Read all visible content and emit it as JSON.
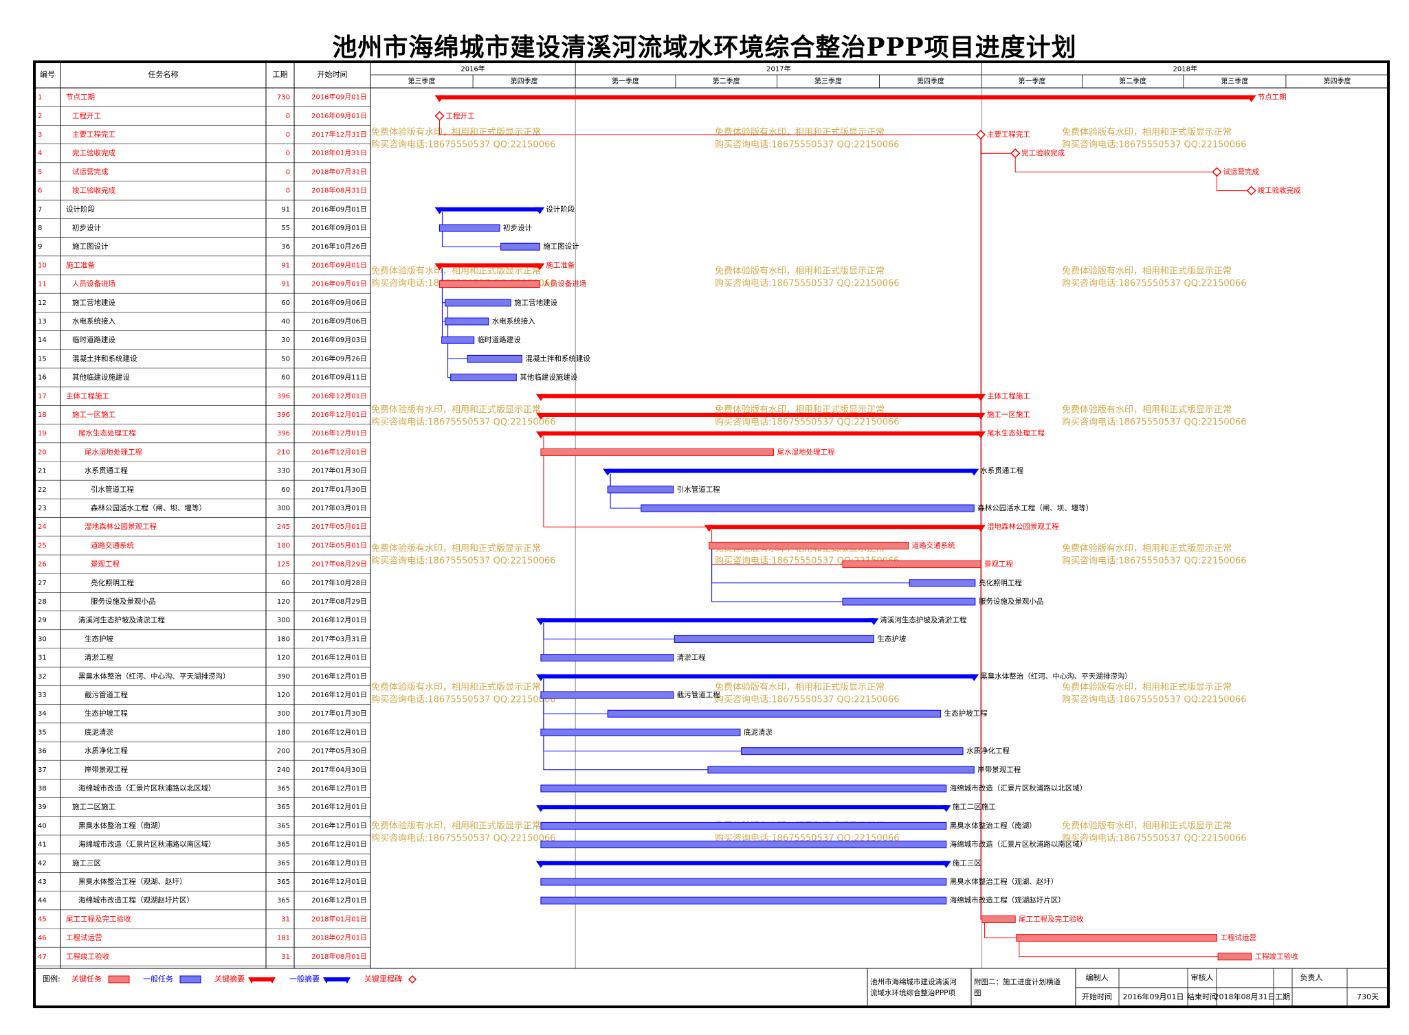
{
  "title": "池州市海绵城市建设清溪河流域水环境综合整治PPP项目进度计划",
  "table_headers": {
    "id": "编号",
    "name": "任务名称",
    "duration": "工期",
    "start": "开始时间"
  },
  "timeline": {
    "years": [
      {
        "label": "2016年",
        "start": "2016-07-01",
        "end": "2017-01-01"
      },
      {
        "label": "2017年",
        "start": "2017-01-01",
        "end": "2018-01-01"
      },
      {
        "label": "2018年",
        "start": "2018-01-01",
        "end": "2019-01-01"
      }
    ],
    "quarters": [
      {
        "label": "第三季度",
        "start": "2016-07-01",
        "end": "2016-10-01"
      },
      {
        "label": "第四季度",
        "start": "2016-10-01",
        "end": "2017-01-01"
      },
      {
        "label": "第一季度",
        "start": "2017-01-01",
        "end": "2017-04-01"
      },
      {
        "label": "第二季度",
        "start": "2017-04-01",
        "end": "2017-07-01"
      },
      {
        "label": "第三季度",
        "start": "2017-07-01",
        "end": "2017-10-01"
      },
      {
        "label": "第四季度",
        "start": "2017-10-01",
        "end": "2018-01-01"
      },
      {
        "label": "第一季度",
        "start": "2018-01-01",
        "end": "2018-04-01"
      },
      {
        "label": "第二季度",
        "start": "2018-04-01",
        "end": "2018-07-01"
      },
      {
        "label": "第三季度",
        "start": "2018-07-01",
        "end": "2018-10-01"
      },
      {
        "label": "第四季度",
        "start": "2018-10-01",
        "end": "2019-01-01"
      }
    ]
  },
  "watermark": {
    "line1": "免费体验版有水印，相用和正式版显示正常",
    "line2": "购买咨询电话:18675550537 QQ:22150066"
  },
  "colors": {
    "critical": "#ff0000",
    "normal": "#0000ff",
    "critical_fill": "#f08080",
    "normal_fill": "#7b7bf0",
    "watermark": "#d2a94a"
  },
  "chart_data": {
    "type": "gantt",
    "x_axis": "date",
    "tasks": [
      {
        "id": "1",
        "name": "节点工期",
        "duration": "730",
        "start": "2016年09月01日",
        "start_date": "2016-09-01",
        "end_date": "2018-08-31",
        "kind": "summary",
        "critical": true,
        "indent": 1,
        "bar_label": "节点工期"
      },
      {
        "id": "2",
        "name": "工程开工",
        "duration": "0",
        "start": "2016年09月01日",
        "start_date": "2016-09-01",
        "end_date": "2016-09-01",
        "kind": "milestone",
        "critical": true,
        "indent": 2,
        "bar_label": "工程开工"
      },
      {
        "id": "3",
        "name": "主要工程完工",
        "duration": "0",
        "start": "2017年12月31日",
        "start_date": "2017-12-31",
        "end_date": "2017-12-31",
        "kind": "milestone",
        "critical": true,
        "indent": 2,
        "bar_label": "主要工程完工"
      },
      {
        "id": "4",
        "name": "完工验收完成",
        "duration": "0",
        "start": "2018年01月31日",
        "start_date": "2018-01-31",
        "end_date": "2018-01-31",
        "kind": "milestone",
        "critical": true,
        "indent": 2,
        "bar_label": "完工验收完成"
      },
      {
        "id": "5",
        "name": "试运营完成",
        "duration": "0",
        "start": "2018年07月31日",
        "start_date": "2018-07-31",
        "end_date": "2018-07-31",
        "kind": "milestone",
        "critical": true,
        "indent": 2,
        "bar_label": "试运营完成"
      },
      {
        "id": "6",
        "name": "竣工验收完成",
        "duration": "0",
        "start": "2018年08月31日",
        "start_date": "2018-08-31",
        "end_date": "2018-08-31",
        "kind": "milestone",
        "critical": true,
        "indent": 2,
        "bar_label": "竣工验收完成"
      },
      {
        "id": "7",
        "name": "设计阶段",
        "duration": "91",
        "start": "2016年09月01日",
        "start_date": "2016-09-01",
        "end_date": "2016-11-30",
        "kind": "summary",
        "critical": false,
        "indent": 1,
        "bar_label": "设计阶段"
      },
      {
        "id": "8",
        "name": "初步设计",
        "duration": "55",
        "start": "2016年09月01日",
        "start_date": "2016-09-01",
        "end_date": "2016-10-25",
        "kind": "task",
        "critical": false,
        "indent": 2,
        "bar_label": "初步设计"
      },
      {
        "id": "9",
        "name": "施工图设计",
        "duration": "36",
        "start": "2016年10月26日",
        "start_date": "2016-10-26",
        "end_date": "2016-11-30",
        "kind": "task",
        "critical": false,
        "indent": 2,
        "bar_label": "施工图设计"
      },
      {
        "id": "10",
        "name": "施工准备",
        "duration": "91",
        "start": "2016年09月01日",
        "start_date": "2016-09-01",
        "end_date": "2016-11-30",
        "kind": "summary",
        "critical": true,
        "indent": 1,
        "bar_label": "施工准备"
      },
      {
        "id": "11",
        "name": "人员设备进场",
        "duration": "91",
        "start": "2016年09月01日",
        "start_date": "2016-09-01",
        "end_date": "2016-11-30",
        "kind": "task",
        "critical": true,
        "indent": 2,
        "bar_label": "人员设备进场"
      },
      {
        "id": "12",
        "name": "施工营地建设",
        "duration": "60",
        "start": "2016年09月06日",
        "start_date": "2016-09-06",
        "end_date": "2016-11-04",
        "kind": "task",
        "critical": false,
        "indent": 2,
        "bar_label": "施工营地建设"
      },
      {
        "id": "13",
        "name": "水电系统接入",
        "duration": "40",
        "start": "2016年09月06日",
        "start_date": "2016-09-06",
        "end_date": "2016-10-15",
        "kind": "task",
        "critical": false,
        "indent": 2,
        "bar_label": "水电系统接入"
      },
      {
        "id": "14",
        "name": "临时道路建设",
        "duration": "30",
        "start": "2016年09月03日",
        "start_date": "2016-09-03",
        "end_date": "2016-10-02",
        "kind": "task",
        "critical": false,
        "indent": 2,
        "bar_label": "临时道路建设"
      },
      {
        "id": "15",
        "name": "混凝土拌和系统建设",
        "duration": "50",
        "start": "2016年09月26日",
        "start_date": "2016-09-26",
        "end_date": "2016-11-14",
        "kind": "task",
        "critical": false,
        "indent": 2,
        "bar_label": "混凝土拌和系统建设"
      },
      {
        "id": "16",
        "name": "其他临建设施建设",
        "duration": "60",
        "start": "2016年09月11日",
        "start_date": "2016-09-11",
        "end_date": "2016-11-09",
        "kind": "task",
        "critical": false,
        "indent": 2,
        "bar_label": "其他临建设施建设"
      },
      {
        "id": "17",
        "name": "主体工程施工",
        "duration": "396",
        "start": "2016年12月01日",
        "start_date": "2016-12-01",
        "end_date": "2017-12-31",
        "kind": "summary",
        "critical": true,
        "indent": 1,
        "bar_label": "主体工程施工"
      },
      {
        "id": "18",
        "name": "施工一区施工",
        "duration": "396",
        "start": "2016年12月01日",
        "start_date": "2016-12-01",
        "end_date": "2017-12-31",
        "kind": "summary",
        "critical": true,
        "indent": 2,
        "bar_label": "施工一区施工"
      },
      {
        "id": "19",
        "name": "尾水生态处理工程",
        "duration": "396",
        "start": "2016年12月01日",
        "start_date": "2016-12-01",
        "end_date": "2017-12-31",
        "kind": "summary",
        "critical": true,
        "indent": 3,
        "bar_label": "尾水生态处理工程"
      },
      {
        "id": "20",
        "name": "尾水湿地处理工程",
        "duration": "210",
        "start": "2016年12月01日",
        "start_date": "2016-12-01",
        "end_date": "2017-06-28",
        "kind": "task",
        "critical": true,
        "indent": 4,
        "bar_label": "尾水湿地处理工程"
      },
      {
        "id": "21",
        "name": "水系贯通工程",
        "duration": "330",
        "start": "2017年01月30日",
        "start_date": "2017-01-30",
        "end_date": "2017-12-25",
        "kind": "summary",
        "critical": false,
        "indent": 4,
        "bar_label": "水系贯通工程"
      },
      {
        "id": "22",
        "name": "引水管道工程",
        "duration": "60",
        "start": "2017年01月30日",
        "start_date": "2017-01-30",
        "end_date": "2017-03-30",
        "kind": "task",
        "critical": false,
        "indent": 5,
        "bar_label": "引水管道工程"
      },
      {
        "id": "23",
        "name": "森林公园活水工程（闸、坝、堰等）",
        "duration": "300",
        "start": "2017年03月01日",
        "start_date": "2017-03-01",
        "end_date": "2017-12-25",
        "kind": "task",
        "critical": false,
        "indent": 5,
        "bar_label": "森林公园活水工程（闸、坝、堰等）"
      },
      {
        "id": "24",
        "name": "湿地森林公园景观工程",
        "duration": "245",
        "start": "2017年05月01日",
        "start_date": "2017-05-01",
        "end_date": "2017-12-31",
        "kind": "summary",
        "critical": true,
        "indent": 4,
        "bar_label": "湿地森林公园景观工程"
      },
      {
        "id": "25",
        "name": "道路交通系统",
        "duration": "180",
        "start": "2017年05月01日",
        "start_date": "2017-05-01",
        "end_date": "2017-10-27",
        "kind": "task",
        "critical": true,
        "indent": 5,
        "bar_label": "道路交通系统"
      },
      {
        "id": "26",
        "name": "景观工程",
        "duration": "125",
        "start": "2017年08月29日",
        "start_date": "2017-08-29",
        "end_date": "2017-12-31",
        "kind": "task",
        "critical": true,
        "indent": 5,
        "bar_label": "景观工程"
      },
      {
        "id": "27",
        "name": "亮化照明工程",
        "duration": "60",
        "start": "2017年10月28日",
        "start_date": "2017-10-28",
        "end_date": "2017-12-26",
        "kind": "task",
        "critical": false,
        "indent": 5,
        "bar_label": "亮化照明工程"
      },
      {
        "id": "28",
        "name": "服务设施及景观小品",
        "duration": "120",
        "start": "2017年08月29日",
        "start_date": "2017-08-29",
        "end_date": "2017-12-26",
        "kind": "task",
        "critical": false,
        "indent": 5,
        "bar_label": "服务设施及景观小品"
      },
      {
        "id": "29",
        "name": "清溪河生态护坡及清淤工程",
        "duration": "300",
        "start": "2016年12月01日",
        "start_date": "2016-12-01",
        "end_date": "2017-09-26",
        "kind": "summary",
        "critical": false,
        "indent": 3,
        "bar_label": "清溪河生态护坡及清淤工程"
      },
      {
        "id": "30",
        "name": "生态护坡",
        "duration": "180",
        "start": "2017年03月31日",
        "start_date": "2017-03-31",
        "end_date": "2017-09-26",
        "kind": "task",
        "critical": false,
        "indent": 4,
        "bar_label": "生态护坡"
      },
      {
        "id": "31",
        "name": "清淤工程",
        "duration": "120",
        "start": "2016年12月01日",
        "start_date": "2016-12-01",
        "end_date": "2017-03-30",
        "kind": "task",
        "critical": false,
        "indent": 4,
        "bar_label": "清淤工程"
      },
      {
        "id": "32",
        "name": "黑臭水体整治（红河、中心沟、平天湖排涝沟）",
        "duration": "390",
        "start": "2016年12月01日",
        "start_date": "2016-12-01",
        "end_date": "2017-12-25",
        "kind": "summary",
        "critical": false,
        "indent": 3,
        "bar_label": "黑臭水体整治（红河、中心沟、平天湖排涝沟）"
      },
      {
        "id": "33",
        "name": "截污管道工程",
        "duration": "120",
        "start": "2016年12月01日",
        "start_date": "2016-12-01",
        "end_date": "2017-03-30",
        "kind": "task",
        "critical": false,
        "indent": 4,
        "bar_label": "截污管道工程"
      },
      {
        "id": "34",
        "name": "生态护坡工程",
        "duration": "300",
        "start": "2017年01月30日",
        "start_date": "2017-01-30",
        "end_date": "2017-11-25",
        "kind": "task",
        "critical": false,
        "indent": 4,
        "bar_label": "生态护坡工程"
      },
      {
        "id": "35",
        "name": "底泥清淤",
        "duration": "180",
        "start": "2016年12月01日",
        "start_date": "2016-12-01",
        "end_date": "2017-05-29",
        "kind": "task",
        "critical": false,
        "indent": 4,
        "bar_label": "底泥清淤"
      },
      {
        "id": "36",
        "name": "水质净化工程",
        "duration": "200",
        "start": "2017年05月30日",
        "start_date": "2017-05-30",
        "end_date": "2017-12-15",
        "kind": "task",
        "critical": false,
        "indent": 4,
        "bar_label": "水质净化工程"
      },
      {
        "id": "37",
        "name": "岸带景观工程",
        "duration": "240",
        "start": "2017年04月30日",
        "start_date": "2017-04-30",
        "end_date": "2017-12-25",
        "kind": "task",
        "critical": false,
        "indent": 4,
        "bar_label": "岸带景观工程"
      },
      {
        "id": "38",
        "name": "海绵城市改造（汇景片区秋浦路以北区域）",
        "duration": "365",
        "start": "2016年12月01日",
        "start_date": "2016-12-01",
        "end_date": "2017-11-30",
        "kind": "task",
        "critical": false,
        "indent": 3,
        "bar_label": "海绵城市改造（汇景片区秋浦路以北区域）"
      },
      {
        "id": "39",
        "name": "施工二区施工",
        "duration": "365",
        "start": "2016年12月01日",
        "start_date": "2016-12-01",
        "end_date": "2017-11-30",
        "kind": "summary",
        "critical": false,
        "indent": 2,
        "bar_label": "施工二区施工"
      },
      {
        "id": "40",
        "name": "黑臭水体整治工程（南湖）",
        "duration": "365",
        "start": "2016年12月01日",
        "start_date": "2016-12-01",
        "end_date": "2017-11-30",
        "kind": "task",
        "critical": false,
        "indent": 3,
        "bar_label": "黑臭水体整治工程（南湖）"
      },
      {
        "id": "41",
        "name": "海绵城市改造（汇景片区秋浦路以南区域）",
        "duration": "365",
        "start": "2016年12月01日",
        "start_date": "2016-12-01",
        "end_date": "2017-11-30",
        "kind": "task",
        "critical": false,
        "indent": 3,
        "bar_label": "海绵城市改造（汇景片区秋浦路以南区域）"
      },
      {
        "id": "42",
        "name": "施工三区",
        "duration": "365",
        "start": "2016年12月01日",
        "start_date": "2016-12-01",
        "end_date": "2017-11-30",
        "kind": "summary",
        "critical": false,
        "indent": 2,
        "bar_label": "施工三区"
      },
      {
        "id": "43",
        "name": "黑臭水体整治工程（观湖、赵圩）",
        "duration": "365",
        "start": "2016年12月01日",
        "start_date": "2016-12-01",
        "end_date": "2017-11-30",
        "kind": "task",
        "critical": false,
        "indent": 3,
        "bar_label": "黑臭水体整治工程（观湖、赵圩）"
      },
      {
        "id": "44",
        "name": "海绵城市改造工程（观湖赵圩片区）",
        "duration": "365",
        "start": "2016年12月01日",
        "start_date": "2016-12-01",
        "end_date": "2017-11-30",
        "kind": "task",
        "critical": false,
        "indent": 3,
        "bar_label": "海绵城市改造工程（观湖赵圩片区）"
      },
      {
        "id": "45",
        "name": "尾工工程及完工验收",
        "duration": "31",
        "start": "2018年01月01日",
        "start_date": "2018-01-01",
        "end_date": "2018-01-31",
        "kind": "task",
        "critical": true,
        "indent": 1,
        "bar_label": "尾工工程及完工验收"
      },
      {
        "id": "46",
        "name": "工程试运营",
        "duration": "181",
        "start": "2018年02月01日",
        "start_date": "2018-02-01",
        "end_date": "2018-07-31",
        "kind": "task",
        "critical": true,
        "indent": 1,
        "bar_label": "工程试运营"
      },
      {
        "id": "47",
        "name": "工程竣工验收",
        "duration": "31",
        "start": "2018年08月01日",
        "start_date": "2018-08-01",
        "end_date": "2018-08-31",
        "kind": "task",
        "critical": true,
        "indent": 1,
        "bar_label": "工程竣工验收"
      }
    ]
  },
  "legend": {
    "label": "图例:",
    "items": [
      {
        "label": "关键任务",
        "kind": "task",
        "critical": true
      },
      {
        "label": "一般任务",
        "kind": "task",
        "critical": false
      },
      {
        "label": "关键摘要",
        "kind": "summary",
        "critical": true
      },
      {
        "label": "一般摘要",
        "kind": "summary",
        "critical": false
      },
      {
        "label": "关键里程碑",
        "kind": "milestone",
        "critical": true
      }
    ]
  },
  "footer": {
    "project_name_line1": "池州市海绵城市建设清溪河",
    "project_name_line2": "流域水环境综合整治PPP项",
    "figure_line1": "附图二：施工进度计划横道",
    "figure_line2": "图",
    "compiler_label": "编制人",
    "reviewer_label": "审核人",
    "manager_label": "负责人",
    "start_label": "开始时间",
    "start_value": "2016年09月01日",
    "end_label": "结束时间",
    "end_value": "2018年08月31日",
    "duration_label": "工期",
    "duration_value": "730天"
  }
}
